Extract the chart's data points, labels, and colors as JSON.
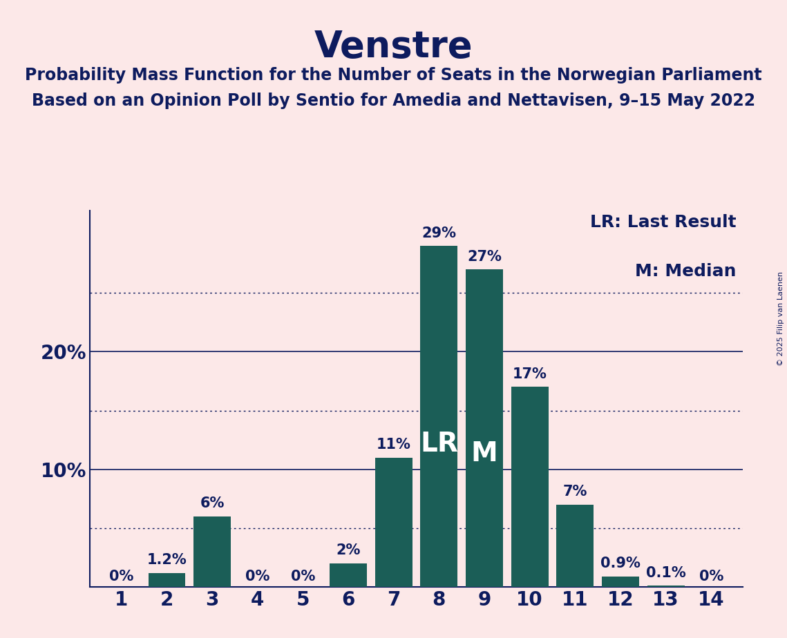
{
  "title": "Venstre",
  "subtitle_line1": "Probability Mass Function for the Number of Seats in the Norwegian Parliament",
  "subtitle_line2": "Based on an Opinion Poll by Sentio for Amedia and Nettavisen, 9–15 May 2022",
  "copyright": "© 2025 Filip van Laenen",
  "seats": [
    1,
    2,
    3,
    4,
    5,
    6,
    7,
    8,
    9,
    10,
    11,
    12,
    13,
    14
  ],
  "probabilities": [
    0.0,
    1.2,
    6.0,
    0.0,
    0.0,
    2.0,
    11.0,
    29.0,
    27.0,
    17.0,
    7.0,
    0.9,
    0.1,
    0.0
  ],
  "bar_labels": [
    "0%",
    "1.2%",
    "6%",
    "0%",
    "0%",
    "2%",
    "11%",
    "29%",
    "27%",
    "17%",
    "7%",
    "0.9%",
    "0.1%",
    "0%"
  ],
  "last_result_seat": 8,
  "median_seat": 9,
  "bar_color": "#1b5e57",
  "background_color": "#fce8e8",
  "text_color": "#0d1b5e",
  "title_fontsize": 38,
  "subtitle_fontsize": 17,
  "bar_label_fontsize": 15,
  "tick_fontsize": 20,
  "legend_fontsize": 18,
  "lr_label_fontsize": 28,
  "m_label_fontsize": 28,
  "ylim": [
    0,
    32
  ],
  "yticks": [
    0,
    10,
    20
  ],
  "dotted_lines": [
    5,
    15,
    25
  ],
  "legend_lr": "LR: Last Result",
  "legend_m": "M: Median"
}
